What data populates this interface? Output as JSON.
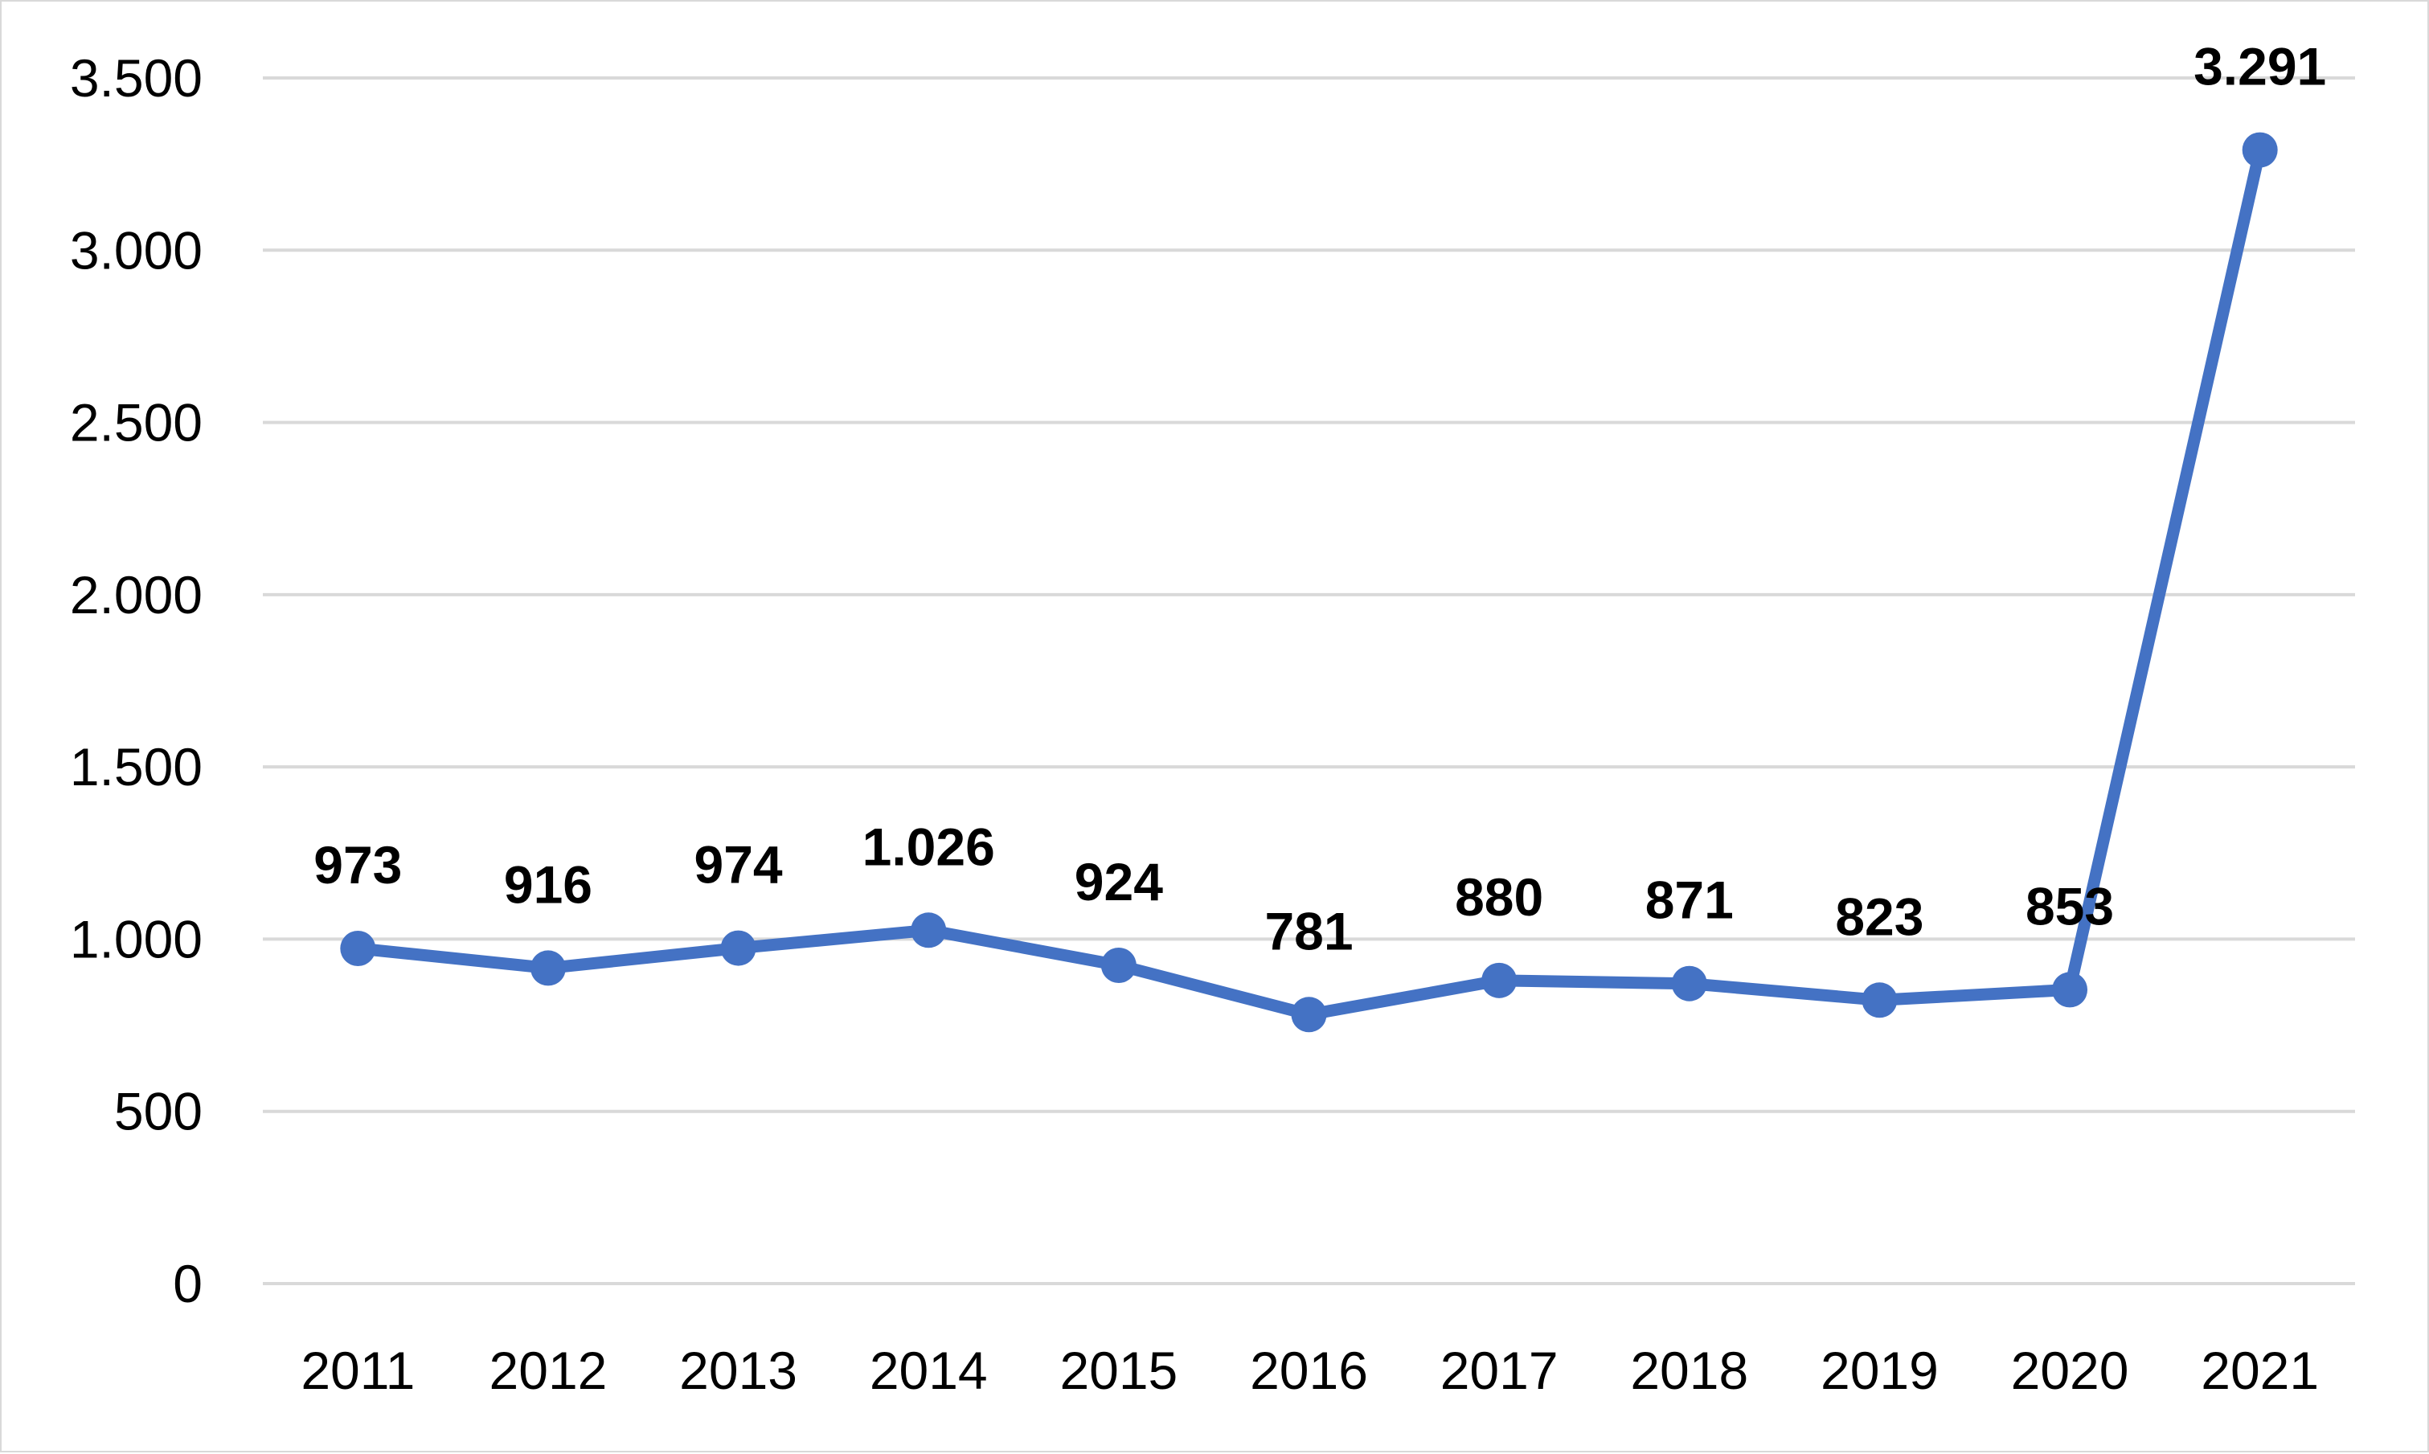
{
  "chart_data": {
    "type": "line",
    "title": "",
    "xlabel": "",
    "ylabel": "",
    "categories": [
      "2011",
      "2012",
      "2013",
      "2014",
      "2015",
      "2016",
      "2017",
      "2018",
      "2019",
      "2020",
      "2021"
    ],
    "series": [
      {
        "values": [
          973,
          916,
          974,
          1026,
          924,
          781,
          880,
          871,
          823,
          853,
          3291
        ],
        "data_labels": [
          "973",
          "916",
          "974",
          "1.026",
          "924",
          "781",
          "880",
          "871",
          "823",
          "853",
          "3.291"
        ],
        "color": "#4472c4",
        "marker": "circle"
      }
    ],
    "ylim": [
      0,
      3500
    ],
    "y_ticks": [
      0,
      500,
      1000,
      1500,
      2000,
      2500,
      3000,
      3500
    ],
    "y_tick_labels": [
      "0",
      "500",
      "1.000",
      "1.500",
      "2.000",
      "2.500",
      "3.000",
      "3.500"
    ],
    "grid": "horizontal",
    "gridline_color": "#d9d9d9",
    "legend": "none"
  }
}
